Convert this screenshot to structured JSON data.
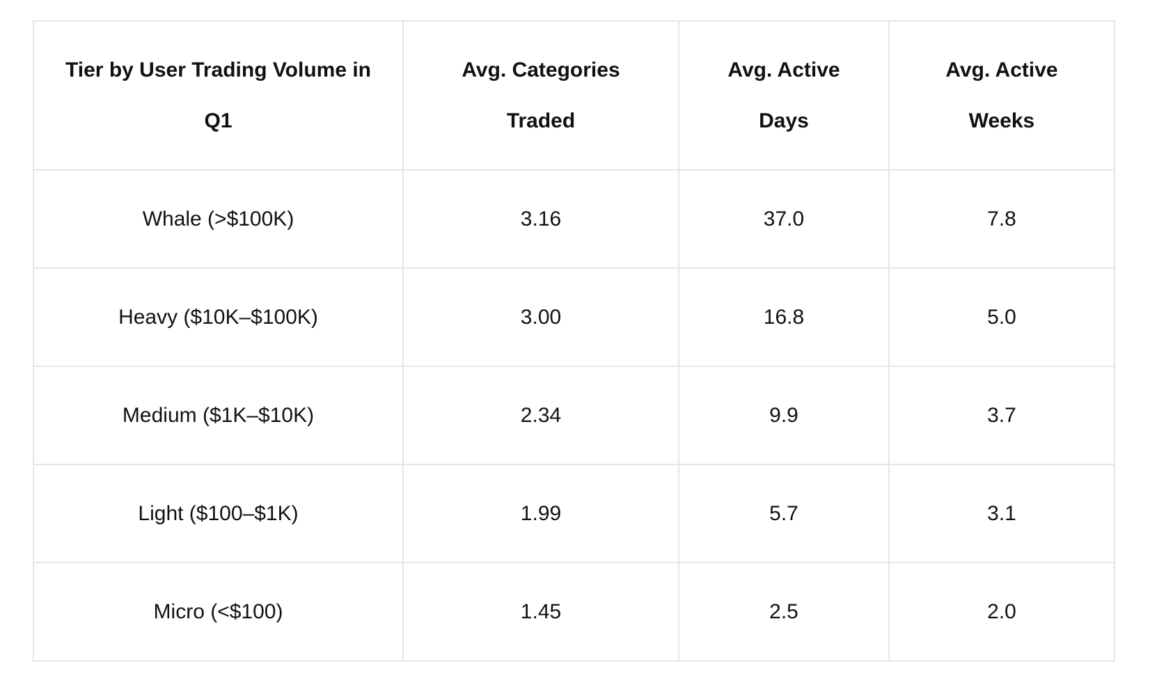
{
  "table": {
    "header": [
      "Tier by User Trading Volume in Q1",
      "Avg. Categories Traded",
      "Avg. Active Days",
      "Avg. Active Weeks"
    ],
    "rows": [
      [
        "Whale (>$100K)",
        "3.16",
        "37.0",
        "7.8"
      ],
      [
        "Heavy ($10K–$100K)",
        "3.00",
        "16.8",
        "5.0"
      ],
      [
        "Medium ($1K–$10K)",
        "2.34",
        "9.9",
        "3.7"
      ],
      [
        "Light ($100–$1K)",
        "1.99",
        "5.7",
        "3.1"
      ],
      [
        "Micro (<$100)",
        "1.45",
        "2.5",
        "2.0"
      ]
    ]
  }
}
